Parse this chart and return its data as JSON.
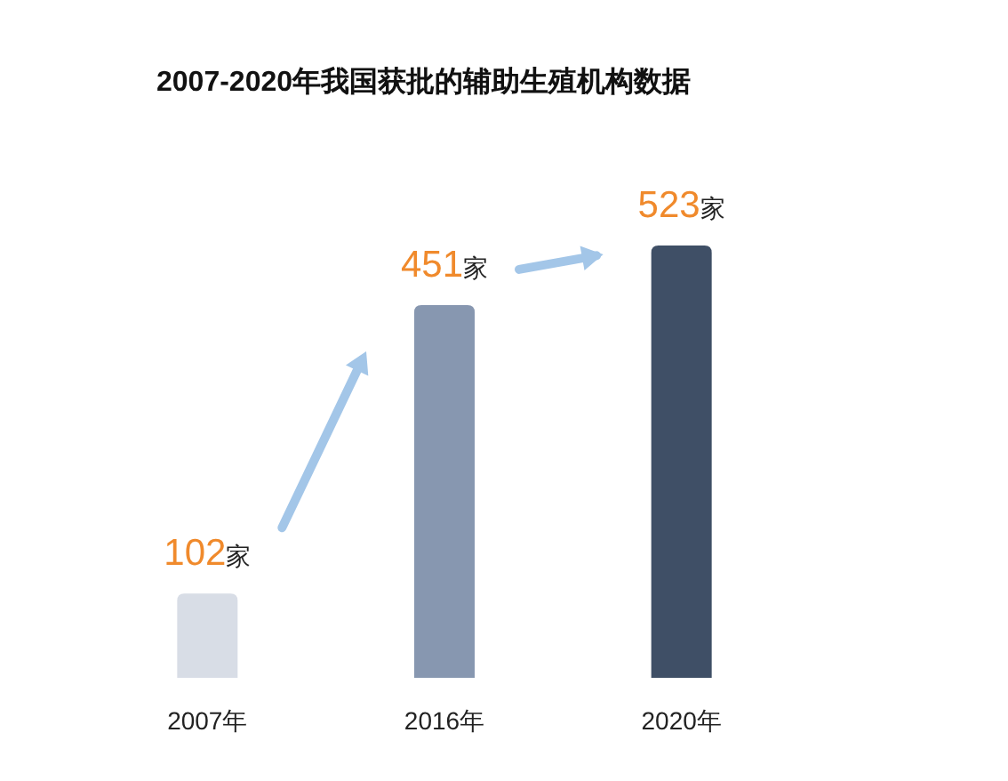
{
  "chart_data": {
    "type": "bar",
    "title": "2007-2020年我国获批的辅助生殖机构数据",
    "categories": [
      "2007年",
      "2016年",
      "2020年"
    ],
    "values": [
      102,
      451,
      523
    ],
    "colors": [
      "#d8dde6",
      "#8797b0",
      "#3f4f66"
    ],
    "value_labels": [
      "102家",
      "451家",
      "523家"
    ]
  }
}
